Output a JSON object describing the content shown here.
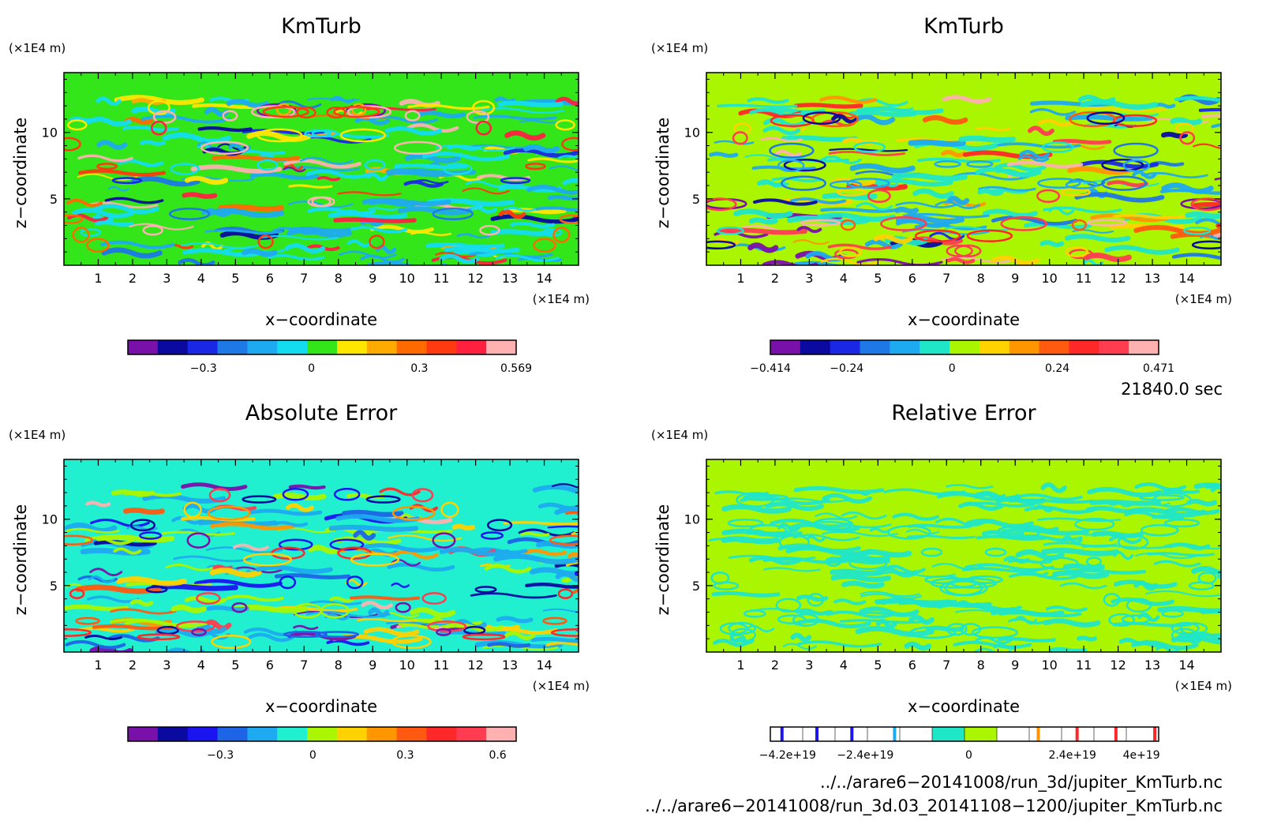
{
  "chart_data": [
    {
      "type": "heatmap",
      "title": "KmTurb",
      "xlabel": "x−coordinate",
      "ylabel": "z−coordinate",
      "x_unit": "(×1E4 m)",
      "y_unit": "(×1E4 m)",
      "xlim": [
        0,
        15
      ],
      "ylim": [
        0,
        14.5
      ],
      "xticks": [
        "1",
        "2",
        "3",
        "4",
        "5",
        "6",
        "7",
        "8",
        "9",
        "10",
        "11",
        "12",
        "13",
        "14"
      ],
      "yticks": [
        "5",
        "10"
      ],
      "background_color": "#33e61a",
      "colorbar": {
        "colors": [
          "#7a10aa",
          "#0a0aa0",
          "#1a28e6",
          "#1e78e6",
          "#1eaaf0",
          "#14dcf0",
          "#33e61a",
          "#ffe600",
          "#ffaa00",
          "#ff6a00",
          "#ff3a10",
          "#ff2040",
          "#ffb0b0"
        ],
        "tick_labels": [
          "−0.3",
          "0",
          "0.3",
          "0.569"
        ],
        "tick_values": [
          -0.3,
          0,
          0.3,
          0.569
        ],
        "range": [
          -0.51,
          0.569
        ]
      }
    },
    {
      "type": "heatmap",
      "title": "KmTurb",
      "xlabel": "x−coordinate",
      "ylabel": "z−coordinate",
      "x_unit": "(×1E4 m)",
      "y_unit": "(×1E4 m)",
      "xlim": [
        0,
        15
      ],
      "ylim": [
        0,
        14.5
      ],
      "xticks": [
        "1",
        "2",
        "3",
        "4",
        "5",
        "6",
        "7",
        "8",
        "9",
        "10",
        "11",
        "12",
        "13",
        "14"
      ],
      "yticks": [
        "5",
        "10"
      ],
      "background_color": "#aaf500",
      "colorbar": {
        "colors": [
          "#7a10aa",
          "#0a0aa0",
          "#1a28e6",
          "#1e78e6",
          "#1eaaf0",
          "#20e6c8",
          "#aaf500",
          "#ffd200",
          "#ff9600",
          "#ff5a10",
          "#ff2828",
          "#ff3c50",
          "#ffb0b0"
        ],
        "tick_labels": [
          "−0.414",
          "−0.24",
          "0",
          "0.24",
          "0.471"
        ],
        "tick_values": [
          -0.414,
          -0.24,
          0,
          0.24,
          0.471
        ],
        "range": [
          -0.414,
          0.471
        ]
      }
    },
    {
      "type": "heatmap",
      "title": "Absolute Error",
      "xlabel": "x−coordinate",
      "ylabel": "z−coordinate",
      "x_unit": "(×1E4 m)",
      "y_unit": "(×1E4 m)",
      "xlim": [
        0,
        15
      ],
      "ylim": [
        0,
        14.5
      ],
      "xticks": [
        "1",
        "2",
        "3",
        "4",
        "5",
        "6",
        "7",
        "8",
        "9",
        "10",
        "11",
        "12",
        "13",
        "14"
      ],
      "yticks": [
        "5",
        "10"
      ],
      "background_color": "#20f0d0",
      "colorbar": {
        "colors": [
          "#7a10aa",
          "#0a0aa0",
          "#1a14f0",
          "#1e64e6",
          "#1eaaf0",
          "#20f0d0",
          "#aaf500",
          "#ffd200",
          "#ff9600",
          "#ff5a10",
          "#ff2828",
          "#ff3c50",
          "#ffb0b0"
        ],
        "tick_labels": [
          "−0.3",
          "0",
          "0.3",
          "0.6"
        ],
        "tick_values": [
          -0.3,
          0,
          0.3,
          0.6
        ],
        "range": [
          -0.6,
          0.66
        ]
      }
    },
    {
      "type": "heatmap",
      "title": "Relative Error",
      "xlabel": "x−coordinate",
      "ylabel": "z−coordinate",
      "x_unit": "(×1E4 m)",
      "y_unit": "(×1E4 m)",
      "xlim": [
        0,
        15
      ],
      "ylim": [
        0,
        14.5
      ],
      "xticks": [
        "1",
        "2",
        "3",
        "4",
        "5",
        "6",
        "7",
        "8",
        "9",
        "10",
        "11",
        "12",
        "13",
        "14"
      ],
      "yticks": [
        "5",
        "10"
      ],
      "background_color": "#aaf500",
      "colorbar": {
        "colors": [
          "#ffffff",
          "#ffffff",
          "#ffffff",
          "#ffffff",
          "#ffffff",
          "#20e6c8",
          "#aaf500",
          "#ffffff",
          "#ffffff",
          "#ffffff",
          "#ffffff",
          "#ffffff"
        ],
        "tick_labels": [
          "−4.2e+19",
          "−2.4e+19",
          "0",
          "2.4e+19",
          "4e+19"
        ],
        "tick_values": [
          -4.2e+19,
          -2.4e+19,
          0,
          2.4e+19,
          4e+19
        ],
        "range": [
          -4.6e+19,
          4.4e+19
        ]
      }
    }
  ],
  "time_label": "21840.0 sec",
  "file_paths": [
    "../../arare6−20141008/run_3d/jupiter_KmTurb.nc",
    "../../arare6−20141008/run_3d.03_20141108−1200/jupiter_KmTurb.nc"
  ]
}
